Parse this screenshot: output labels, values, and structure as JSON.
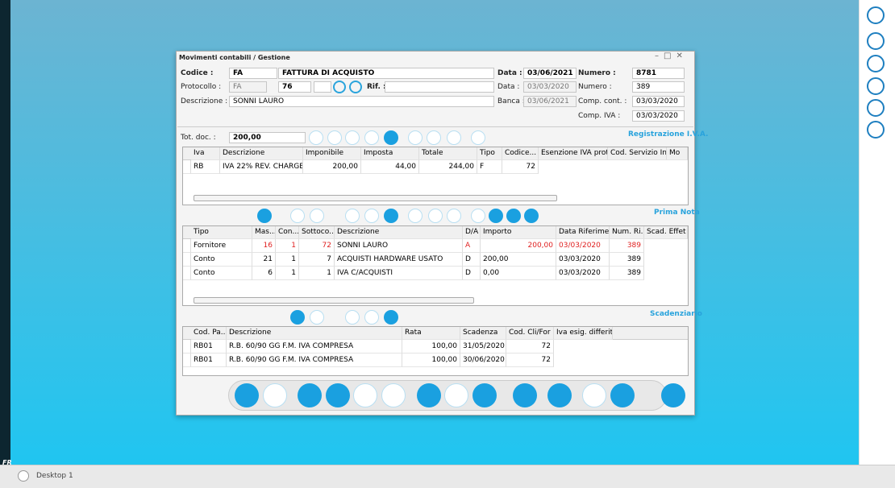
{
  "window": {
    "title": "Movimenti contabili / Gestione"
  },
  "form": {
    "codice": {
      "label": "Codice :",
      "code": "FA",
      "description": "FATTURA DI ACQUISTO"
    },
    "data": {
      "label": "Data :",
      "value": "03/06/2021"
    },
    "numero": {
      "label": "Numero :",
      "value": "8781"
    },
    "protocollo": {
      "label": "Protocollo :",
      "code": "FA",
      "number": "76"
    },
    "rif": {
      "label": "Rif. :"
    },
    "data_protocollo": {
      "label": "Data :",
      "value": "03/03/2020"
    },
    "numero_protocollo": {
      "label": "Numero :",
      "value": "389"
    },
    "descrizione": {
      "label": "Descrizione :",
      "value": "SONNI LAURO"
    },
    "banca": {
      "label": "Banca :",
      "value": "03/06/2021"
    },
    "comp_cont": {
      "label": "Comp. cont. :",
      "value": "03/03/2020"
    },
    "comp_iva": {
      "label": "Comp. IVA :",
      "value": "03/03/2020"
    },
    "tot_doc": {
      "label": "Tot. doc. :",
      "value": "200,00"
    }
  },
  "iva": {
    "title": "Registrazione I.V.A.",
    "headers": [
      "Iva",
      "Descrizione",
      "Imponibile",
      "Imposta",
      "Totale",
      "Tipo",
      "Codice...",
      "Esenzione IVA prot...",
      "Cod. Servizio In...",
      "Mo"
    ],
    "rows": [
      [
        "RB",
        "IVA 22% REV. CHARGE",
        "200,00",
        "44,00",
        "244,00",
        "F",
        "72"
      ]
    ]
  },
  "prima_nota": {
    "title": "Prima Nota",
    "headers": [
      "Tipo",
      "Mas...",
      "Con...",
      "Sottoco...",
      "Descrizione",
      "D/A",
      "Importo",
      "Data Riferime...",
      "Num. Ri...",
      "Scad. Effet"
    ],
    "rows": [
      [
        "Fornitore",
        "16",
        "1",
        "72",
        "SONNI LAURO",
        "A",
        "200,00",
        "03/03/2020",
        "389"
      ],
      [
        "Conto",
        "21",
        "1",
        "7",
        "ACQUISTI HARDWARE USATO",
        "D",
        "200,00",
        "03/03/2020",
        "389"
      ],
      [
        "Conto",
        "6",
        "1",
        "1",
        "IVA C/ACQUISTI",
        "D",
        "0,00",
        "03/03/2020",
        "389"
      ]
    ]
  },
  "scadenziario": {
    "title": "Scadenziario",
    "headers": [
      "Cod. Pa...",
      "Descrizione",
      "Rata",
      "Scadenza",
      "Cod. Cli/For",
      "Iva esig. differita"
    ],
    "rows": [
      [
        "RB01",
        "R.B. 60/90 GG F.M. IVA COMPRESA",
        "100,00",
        "31/05/2020",
        "72"
      ],
      [
        "RB01",
        "R.B. 60/90 GG F.M. IVA COMPRESA",
        "100,00",
        "30/06/2020",
        "72"
      ]
    ]
  },
  "taskbar": {
    "desktop": "Desktop 1",
    "logo": "FR"
  }
}
